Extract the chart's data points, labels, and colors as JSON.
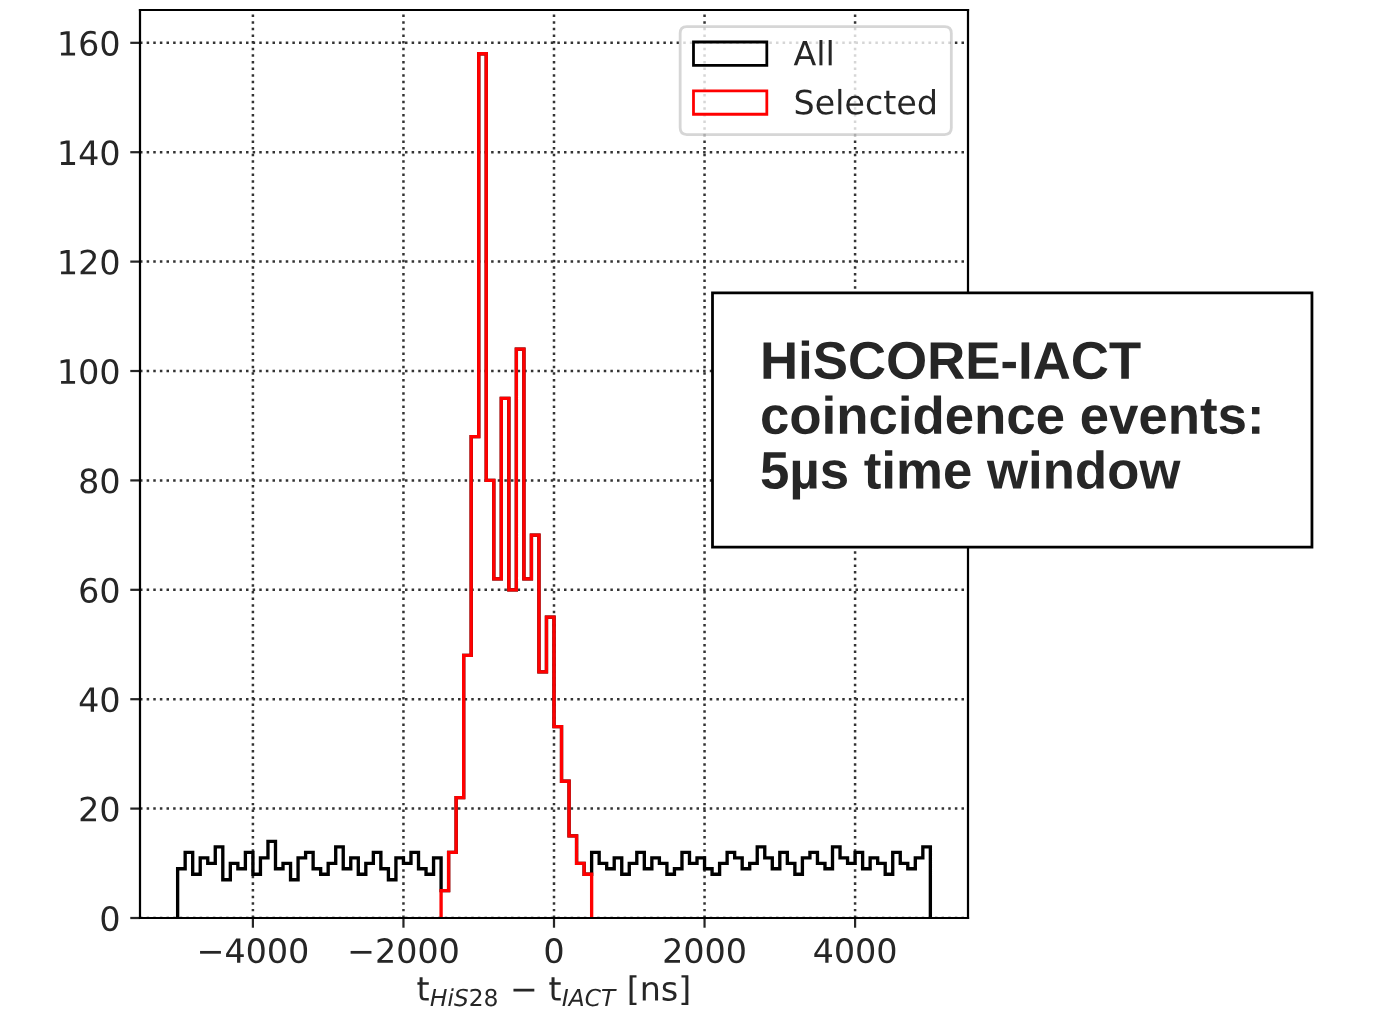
{
  "chart_data": {
    "type": "histogram",
    "xlabel": "t$_{HiS28}$ − t$_{IACT}$ [ns]",
    "bins": [
      -5000,
      -4900,
      -4800,
      -4700,
      -4600,
      -4500,
      -4400,
      -4300,
      -4200,
      -4100,
      -4000,
      -3900,
      -3800,
      -3700,
      -3600,
      -3500,
      -3400,
      -3300,
      -3200,
      -3100,
      -3000,
      -2900,
      -2800,
      -2700,
      -2600,
      -2500,
      -2400,
      -2300,
      -2200,
      -2100,
      -2000,
      -1900,
      -1800,
      -1700,
      -1600,
      -1500,
      -1400,
      -1300,
      -1200,
      -1100,
      -1000,
      -900,
      -800,
      -700,
      -600,
      -500,
      -400,
      -300,
      -200,
      -100,
      0,
      100,
      200,
      300,
      400,
      500,
      600,
      700,
      800,
      900,
      1000,
      1100,
      1200,
      1300,
      1400,
      1500,
      1600,
      1700,
      1800,
      1900,
      2000,
      2100,
      2200,
      2300,
      2400,
      2500,
      2600,
      2700,
      2800,
      2900,
      3000,
      3100,
      3200,
      3300,
      3400,
      3500,
      3600,
      3700,
      3800,
      3900,
      4000,
      4100,
      4200,
      4300,
      4400,
      4500,
      4600,
      4700,
      4800,
      4900,
      5000
    ],
    "series": [
      {
        "name": "All",
        "color": "#000000",
        "values": [
          9,
          12,
          8,
          11,
          10,
          13,
          7,
          10,
          9,
          12,
          8,
          11,
          14,
          9,
          10,
          7,
          11,
          12,
          9,
          8,
          10,
          13,
          9,
          11,
          8,
          10,
          12,
          9,
          7,
          11,
          10,
          12,
          9,
          8,
          11,
          5,
          12,
          22,
          48,
          88,
          158,
          80,
          62,
          95,
          60,
          104,
          62,
          70,
          45,
          55,
          35,
          25,
          15,
          10,
          8,
          12,
          10,
          9,
          11,
          8,
          10,
          12,
          9,
          11,
          10,
          8,
          9,
          12,
          10,
          11,
          9,
          8,
          10,
          12,
          11,
          9,
          10,
          13,
          11,
          9,
          12,
          10,
          8,
          11,
          12,
          10,
          9,
          13,
          11,
          10,
          12,
          9,
          11,
          10,
          8,
          12,
          10,
          9,
          11,
          13
        ]
      },
      {
        "name": "Selected",
        "color": "#ff0000",
        "bins": [
          -1500,
          -1400,
          -1300,
          -1200,
          -1100,
          -1000,
          -900,
          -800,
          -700,
          -600,
          -500,
          -400,
          -300,
          -200,
          -100,
          0,
          100,
          200,
          300,
          400,
          500
        ],
        "values": [
          5,
          12,
          22,
          48,
          88,
          158,
          80,
          62,
          95,
          60,
          104,
          62,
          70,
          45,
          55,
          35,
          25,
          15,
          10,
          8
        ]
      }
    ],
    "xlim": [
      -5500,
      5500
    ],
    "ylim": [
      0,
      166
    ],
    "xticks": [
      {
        "value": -4000,
        "label": "−4000"
      },
      {
        "value": -2000,
        "label": "−2000"
      },
      0,
      2000,
      4000
    ],
    "yticks": [
      0,
      20,
      40,
      60,
      80,
      100,
      120,
      140,
      160
    ],
    "grid": true,
    "legend": "top right",
    "annotations": [
      "HiSCORE-IACT\ncoincidence events:\n5µs time window"
    ]
  }
}
